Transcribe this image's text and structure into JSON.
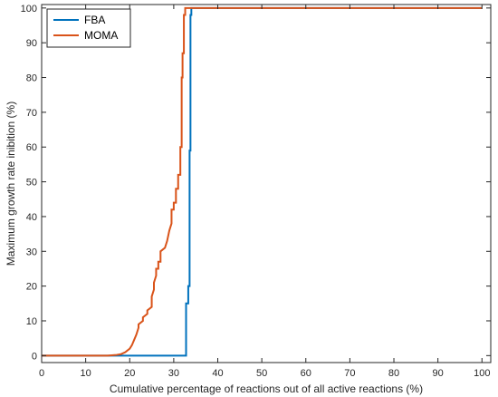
{
  "chart_data": {
    "type": "line",
    "title": "",
    "xlabel": "Cumulative percentage of reactions out of all active reactions (%)",
    "ylabel": "Maximum growth rate inibition (%)",
    "xlim": [
      0,
      102
    ],
    "ylim": [
      -2,
      101
    ],
    "x_ticks": [
      "0",
      "10",
      "20",
      "30",
      "40",
      "50",
      "60",
      "70",
      "80",
      "90",
      "100"
    ],
    "y_ticks": [
      "0",
      "10",
      "20",
      "30",
      "40",
      "50",
      "60",
      "70",
      "80",
      "90",
      "100"
    ],
    "grid": false,
    "legend_position": "top-left",
    "series": [
      {
        "name": "FBA",
        "color": "#0072BD",
        "x": [
          0,
          32.8,
          32.8,
          33.3,
          33.3,
          33.6,
          33.6,
          33.8,
          33.8,
          34.0,
          34.0,
          100
        ],
        "y": [
          0,
          0,
          15,
          15,
          20,
          20,
          59,
          59,
          98,
          98,
          100,
          100
        ]
      },
      {
        "name": "MOMA",
        "color": "#D95319",
        "x": [
          0,
          15,
          17,
          18,
          19,
          20,
          20.5,
          21,
          21.5,
          22,
          22,
          23,
          23,
          24,
          24,
          25,
          25,
          25.5,
          25.5,
          26,
          26,
          26.5,
          26.5,
          27,
          27,
          28,
          28,
          28.5,
          28.5,
          29,
          29,
          29.5,
          29.5,
          30,
          30,
          30.5,
          30.5,
          31,
          31,
          31.5,
          31.5,
          31.8,
          31.8,
          32.0,
          32.0,
          32.3,
          32.3,
          32.6,
          32.6,
          100
        ],
        "y": [
          0,
          0,
          0.2,
          0.4,
          1,
          2,
          3,
          4.5,
          6,
          8,
          9,
          10,
          11,
          12,
          13,
          14,
          17,
          19,
          21,
          23,
          25,
          25,
          27,
          27,
          30,
          31,
          31,
          33,
          33,
          36,
          36,
          38,
          42,
          42,
          44,
          44,
          48,
          48,
          52,
          52,
          60,
          60,
          80,
          80,
          87,
          87,
          98,
          98,
          100,
          100
        ]
      }
    ]
  }
}
